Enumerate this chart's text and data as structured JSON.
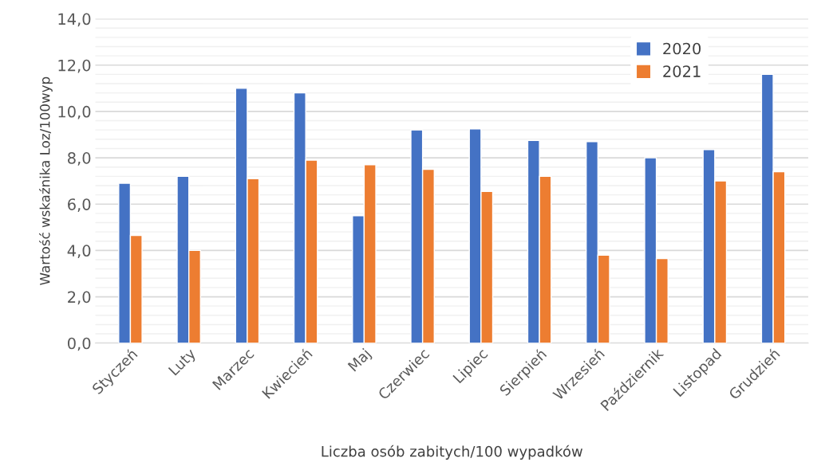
{
  "chart_data": {
    "type": "bar",
    "xlabel": "Liczba osób zabitych/100 wypadków",
    "ylabel": "Wartość wskaźnika Loz/100wyp",
    "categories": [
      "Styczeń",
      "Luty",
      "Marzec",
      "Kwiecień",
      "Maj",
      "Czerwiec",
      "Lipiec",
      "Sierpień",
      "Wrzesień",
      "Październik",
      "Listopad",
      "Grudzień"
    ],
    "series": [
      {
        "name": "2020",
        "color": "#4472c4",
        "values": [
          6.9,
          7.2,
          11.0,
          10.8,
          5.5,
          9.2,
          9.25,
          8.75,
          8.7,
          8.0,
          8.35,
          11.6
        ]
      },
      {
        "name": "2021",
        "color": "#ed7d31",
        "values": [
          4.65,
          4.0,
          7.1,
          7.9,
          7.7,
          7.5,
          6.55,
          7.2,
          3.8,
          3.65,
          7.0,
          7.4
        ]
      }
    ],
    "ylim": [
      0,
      14
    ],
    "yticks": [
      {
        "value": 0,
        "label": "0,0"
      },
      {
        "value": 0.4,
        "label": null
      },
      {
        "value": 0.8,
        "label": null
      },
      {
        "value": 1.2,
        "label": null
      },
      {
        "value": 1.6,
        "label": null
      },
      {
        "value": 2,
        "label": "2,0"
      },
      {
        "value": 2.4,
        "label": null
      },
      {
        "value": 2.8,
        "label": null
      },
      {
        "value": 3.2,
        "label": null
      },
      {
        "value": 3.6,
        "label": null
      },
      {
        "value": 4,
        "label": "4,0"
      },
      {
        "value": 4.4,
        "label": null
      },
      {
        "value": 4.8,
        "label": null
      },
      {
        "value": 5.2,
        "label": null
      },
      {
        "value": 5.6,
        "label": null
      },
      {
        "value": 6,
        "label": "6,0"
      },
      {
        "value": 6.4,
        "label": null
      },
      {
        "value": 6.8,
        "label": null
      },
      {
        "value": 7.2,
        "label": null
      },
      {
        "value": 7.6,
        "label": null
      },
      {
        "value": 8,
        "label": "8,0"
      },
      {
        "value": 8.4,
        "label": null
      },
      {
        "value": 8.8,
        "label": null
      },
      {
        "value": 9.2,
        "label": null
      },
      {
        "value": 9.6,
        "label": null
      },
      {
        "value": 10,
        "label": "10,0"
      },
      {
        "value": 10.4,
        "label": null
      },
      {
        "value": 10.8,
        "label": null
      },
      {
        "value": 11.2,
        "label": null
      },
      {
        "value": 11.6,
        "label": null
      },
      {
        "value": 12,
        "label": "12,0"
      },
      {
        "value": 12.4,
        "label": null
      },
      {
        "value": 12.8,
        "label": null
      },
      {
        "value": 13.2,
        "label": null
      },
      {
        "value": 13.6,
        "label": null
      },
      {
        "value": 14,
        "label": "14,0"
      }
    ],
    "grid": "y",
    "legend": "top right"
  }
}
